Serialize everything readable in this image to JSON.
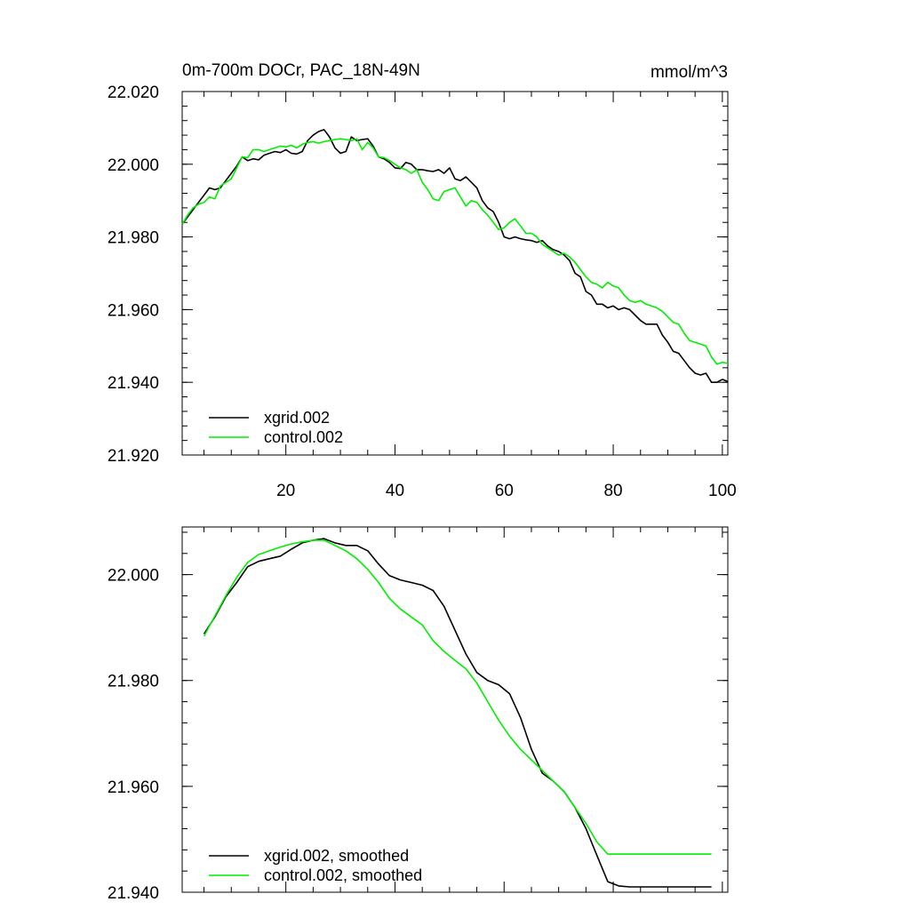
{
  "chart_data": [
    {
      "type": "line",
      "title": "0m-700m DOCr, PAC_18N-49N",
      "units": "mmol/m^3",
      "xlabel": "",
      "ylabel": "",
      "xlim": [
        1,
        101
      ],
      "ylim": [
        21.92,
        22.02
      ],
      "xticks": [
        20,
        40,
        60,
        80,
        100
      ],
      "yticks": [
        21.92,
        21.94,
        21.96,
        21.98,
        22.0,
        22.02
      ],
      "ytick_labels": [
        "21.920",
        "21.940",
        "21.960",
        "21.980",
        "22.000",
        "22.020"
      ],
      "xtick_labels": [
        "20",
        "40",
        "60",
        "80",
        "100"
      ],
      "grid": false,
      "legend_position": "bottom-left",
      "series": [
        {
          "name": "xgrid.002",
          "color": "#000000",
          "x": [
            1,
            2,
            3,
            4,
            5,
            6,
            7,
            8,
            9,
            10,
            11,
            12,
            13,
            14,
            15,
            16,
            17,
            18,
            19,
            20,
            21,
            22,
            23,
            24,
            25,
            26,
            27,
            28,
            29,
            30,
            31,
            32,
            33,
            34,
            35,
            36,
            37,
            38,
            39,
            40,
            41,
            42,
            43,
            44,
            45,
            46,
            47,
            48,
            49,
            50,
            51,
            52,
            53,
            54,
            55,
            56,
            57,
            58,
            59,
            60,
            61,
            62,
            63,
            64,
            65,
            66,
            67,
            68,
            69,
            70,
            71,
            72,
            73,
            74,
            75,
            76,
            77,
            78,
            79,
            80,
            81,
            82,
            83,
            84,
            85,
            86,
            87,
            88,
            89,
            90,
            91,
            92,
            93,
            94,
            95,
            96,
            97,
            98,
            99,
            100,
            101
          ],
          "values": [
            21.9835,
            21.9855,
            21.9875,
            21.9895,
            21.9915,
            21.9935,
            21.993,
            21.9935,
            21.9955,
            21.9975,
            21.9995,
            22.002,
            22.001,
            22.0015,
            22.0012,
            22.0025,
            22.003,
            22.0035,
            22.0032,
            22.004,
            22.003,
            22.0028,
            22.0035,
            22.0065,
            22.008,
            22.009,
            22.0095,
            22.0075,
            22.0045,
            22.003,
            22.0035,
            22.0075,
            22.0065,
            22.0068,
            22.007,
            22.005,
            22.002,
            22.0015,
            22.0005,
            21.999,
            21.9988,
            22.0005,
            22.0,
            21.9985,
            21.9985,
            21.9982,
            21.998,
            21.9985,
            21.9975,
            21.999,
            21.996,
            21.9955,
            21.9965,
            21.995,
            21.9935,
            21.99,
            21.988,
            21.987,
            21.984,
            21.98,
            21.9795,
            21.98,
            21.9795,
            21.9792,
            21.979,
            21.9785,
            21.979,
            21.9775,
            21.9765,
            21.976,
            21.975,
            21.9735,
            21.97,
            21.969,
            21.965,
            21.964,
            21.9615,
            21.9615,
            21.9605,
            21.961,
            21.96,
            21.9605,
            21.96,
            21.9585,
            21.957,
            21.956,
            21.956,
            21.956,
            21.953,
            21.951,
            21.9485,
            21.948,
            21.946,
            21.944,
            21.9425,
            21.942,
            21.9425,
            21.94,
            21.94,
            21.9408,
            21.9402
          ]
        },
        {
          "name": "control.002",
          "color": "#00ee00",
          "x": [
            1,
            2,
            3,
            4,
            5,
            6,
            7,
            8,
            9,
            10,
            11,
            12,
            13,
            14,
            15,
            16,
            17,
            18,
            19,
            20,
            21,
            22,
            23,
            24,
            25,
            26,
            27,
            28,
            29,
            30,
            31,
            32,
            33,
            34,
            35,
            36,
            37,
            38,
            39,
            40,
            41,
            42,
            43,
            44,
            45,
            46,
            47,
            48,
            49,
            50,
            51,
            52,
            53,
            54,
            55,
            56,
            57,
            58,
            59,
            60,
            61,
            62,
            63,
            64,
            65,
            66,
            67,
            68,
            69,
            70,
            71,
            72,
            73,
            74,
            75,
            76,
            77,
            78,
            79,
            80,
            81,
            82,
            83,
            84,
            85,
            86,
            87,
            88,
            89,
            90,
            91,
            92,
            93,
            94,
            95,
            96,
            97,
            98,
            99,
            100,
            101
          ],
          "values": [
            21.9835,
            21.986,
            21.988,
            21.989,
            21.9895,
            21.991,
            21.9905,
            21.994,
            21.995,
            21.996,
            21.999,
            22.002,
            22.0018,
            22.004,
            22.004,
            22.0035,
            22.004,
            22.0045,
            22.005,
            22.0048,
            22.0052,
            22.0045,
            22.0055,
            22.006,
            22.0062,
            22.0058,
            22.0062,
            22.0065,
            22.0068,
            22.007,
            22.0068,
            22.0065,
            22.007,
            22.004,
            22.006,
            22.0045,
            22.002,
            22.0018,
            22.001,
            22.0,
            21.999,
            21.9985,
            21.9975,
            21.9985,
            21.995,
            21.993,
            21.9905,
            21.99,
            21.9925,
            21.993,
            21.9935,
            21.991,
            21.9885,
            21.99,
            21.9895,
            21.9875,
            21.986,
            21.984,
            21.982,
            21.9825,
            21.984,
            21.985,
            21.983,
            21.981,
            21.981,
            21.98,
            21.978,
            21.977,
            21.976,
            21.975,
            21.9755,
            21.9745,
            21.973,
            21.971,
            21.969,
            21.9675,
            21.967,
            21.966,
            21.9675,
            21.9665,
            21.966,
            21.964,
            21.9625,
            21.962,
            21.9625,
            21.9615,
            21.961,
            21.9605,
            21.9595,
            21.958,
            21.9565,
            21.956,
            21.9535,
            21.9515,
            21.951,
            21.9505,
            21.95,
            21.947,
            21.945,
            21.9455,
            21.9452
          ]
        }
      ]
    },
    {
      "type": "line",
      "title": "",
      "xlabel": "",
      "ylabel": "",
      "xlim": [
        1,
        101
      ],
      "ylim": [
        21.94,
        22.009
      ],
      "xticks": [
        20,
        40,
        60,
        80,
        100
      ],
      "yticks": [
        21.94,
        21.96,
        21.98,
        22.0
      ],
      "ytick_labels": [
        "21.940",
        "21.960",
        "21.980",
        "22.000"
      ],
      "grid": false,
      "legend_position": "bottom-left",
      "series": [
        {
          "name": "xgrid.002, smoothed",
          "color": "#000000",
          "x": [
            5,
            7,
            9,
            11,
            13,
            15,
            17,
            19,
            21,
            23,
            25,
            27,
            29,
            31,
            33,
            35,
            37,
            39,
            41,
            43,
            45,
            47,
            49,
            51,
            53,
            55,
            57,
            59,
            61,
            63,
            65,
            67,
            69,
            71,
            73,
            75,
            77,
            79,
            81,
            83,
            85,
            87,
            89,
            91,
            93,
            95,
            97,
            98
          ],
          "values": [
            21.9888,
            21.992,
            21.9958,
            21.9985,
            22.0015,
            22.0025,
            22.003,
            22.0035,
            22.0048,
            22.006,
            22.0065,
            22.0068,
            22.006,
            22.0055,
            22.0055,
            22.0045,
            22.002,
            21.9998,
            21.999,
            21.9985,
            21.998,
            21.997,
            21.994,
            21.9895,
            21.985,
            21.9815,
            21.98,
            21.9792,
            21.9775,
            21.973,
            21.967,
            21.9625,
            21.961,
            21.959,
            21.956,
            21.952,
            21.947,
            21.942,
            21.9412,
            21.941,
            21.941,
            21.941,
            21.941,
            21.941,
            21.941,
            21.941,
            21.941,
            21.941
          ]
        },
        {
          "name": "control.002, smoothed",
          "color": "#00ee00",
          "x": [
            5,
            7,
            9,
            11,
            13,
            15,
            17,
            19,
            21,
            23,
            25,
            27,
            29,
            31,
            33,
            35,
            37,
            39,
            41,
            43,
            45,
            47,
            49,
            51,
            53,
            55,
            57,
            59,
            61,
            63,
            65,
            67,
            69,
            71,
            73,
            75,
            77,
            79,
            81,
            83,
            85,
            87,
            89,
            91,
            93,
            95,
            97,
            98
          ],
          "values": [
            21.9884,
            21.9922,
            21.996,
            21.9995,
            22.0023,
            22.0038,
            22.0045,
            22.0052,
            22.0058,
            22.0062,
            22.0065,
            22.0065,
            22.0055,
            22.0045,
            22.003,
            22.001,
            21.9985,
            21.9955,
            21.9935,
            21.992,
            21.9905,
            21.9875,
            21.9855,
            21.9838,
            21.9822,
            21.9795,
            21.976,
            21.9725,
            21.9695,
            21.967,
            21.965,
            21.963,
            21.961,
            21.959,
            21.956,
            21.953,
            21.9495,
            21.9472,
            21.9472,
            21.9472,
            21.9472,
            21.9472,
            21.9472,
            21.9472,
            21.9472,
            21.9472,
            21.9472,
            21.9472
          ]
        }
      ]
    }
  ]
}
